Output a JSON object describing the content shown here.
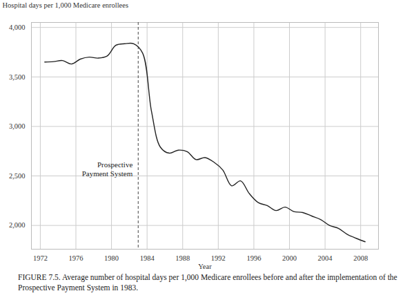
{
  "chart_data": {
    "type": "line",
    "caption": "FIGURE 7.5. Average number of hospital days per 1,000 Medicare enrollees before and after the implementation of the Prospective Payment System in 1983.",
    "x_label": "Year",
    "y_label": "Hospital days per 1,000 Medicare enrollees",
    "x": [
      1972.5,
      1973.5,
      1974.5,
      1975.5,
      1976.5,
      1977.5,
      1978.5,
      1979.5,
      1980.5,
      1981.5,
      1982.5,
      1983.5,
      1984.5,
      1985.5,
      1986.5,
      1987.5,
      1988.5,
      1989.5,
      1990.5,
      1991.5,
      1992.5,
      1993.5,
      1994.5,
      1995.5,
      1996.5,
      1997.5,
      1998.5,
      1999.5,
      2000.5,
      2001.5,
      2002.5,
      2003.5,
      2004.5,
      2005.5,
      2006.5,
      2007.5,
      2008.5
    ],
    "values": [
      3650,
      3655,
      3665,
      3630,
      3680,
      3700,
      3690,
      3710,
      3820,
      3835,
      3835,
      3740,
      3150,
      2790,
      2730,
      2760,
      2745,
      2665,
      2685,
      2640,
      2560,
      2400,
      2450,
      2320,
      2230,
      2200,
      2150,
      2185,
      2140,
      2130,
      2095,
      2060,
      2000,
      1970,
      1910,
      1870,
      1835
    ],
    "color": "#222222",
    "xlim": [
      1971,
      2010
    ],
    "ylim": [
      1760,
      4050
    ],
    "xticks": [
      1972,
      1976,
      1980,
      1984,
      1988,
      1992,
      1996,
      2000,
      2004,
      2008
    ],
    "yticks": [
      {
        "value": 2000,
        "label": "2,000"
      },
      {
        "value": 2500,
        "label": "2,500"
      },
      {
        "value": 3000,
        "label": "3,000"
      },
      {
        "value": 3500,
        "label": "3,500"
      },
      {
        "value": 4000,
        "label": "4,000"
      }
    ],
    "grid": true,
    "annotations": [
      {
        "x": 1983,
        "label": "Prospective\nPayment System",
        "line_style": "dashed"
      }
    ]
  }
}
